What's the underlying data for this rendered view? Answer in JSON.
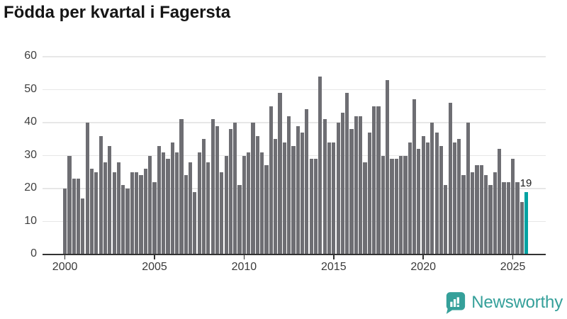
{
  "title": "Födda per kvartal i Fagersta",
  "chart_data": {
    "type": "bar",
    "title": "Födda per kvartal i Fagersta",
    "x_start": "2000-Q1",
    "x_end": "2025-Q4",
    "frequency": "quarterly",
    "values": [
      20,
      30,
      23,
      23,
      17,
      40,
      26,
      25,
      36,
      28,
      33,
      25,
      28,
      21,
      20,
      25,
      25,
      24,
      26,
      30,
      22,
      33,
      31,
      29,
      34,
      31,
      41,
      24,
      28,
      19,
      31,
      35,
      28,
      41,
      39,
      25,
      30,
      38,
      40,
      21,
      30,
      31,
      40,
      36,
      31,
      27,
      45,
      35,
      49,
      34,
      42,
      33,
      39,
      37,
      44,
      29,
      29,
      54,
      41,
      34,
      34,
      40,
      43,
      49,
      38,
      42,
      42,
      28,
      37,
      45,
      45,
      30,
      53,
      29,
      29,
      30,
      30,
      34,
      47,
      32,
      36,
      34,
      40,
      37,
      33,
      21,
      46,
      34,
      35,
      24,
      40,
      25,
      27,
      27,
      24,
      21,
      25,
      32,
      22,
      22,
      29,
      22,
      16,
      19
    ],
    "highlight_index": 103,
    "highlight_label": "19",
    "xticks": [
      {
        "index": 0,
        "label": "2000"
      },
      {
        "index": 20,
        "label": "2005"
      },
      {
        "index": 40,
        "label": "2010"
      },
      {
        "index": 60,
        "label": "2015"
      },
      {
        "index": 80,
        "label": "2020"
      },
      {
        "index": 100,
        "label": "2025"
      }
    ],
    "yticks": [
      0,
      10,
      20,
      30,
      40,
      50,
      60
    ],
    "ylim": [
      0,
      60
    ],
    "grid": "horizontal",
    "legend": "none",
    "colors": {
      "bar": "#6e6e73",
      "highlight": "#00a2a2",
      "grid": "#e7e7e7",
      "axis": "#333333",
      "tick_label": "#3f3f3f"
    }
  },
  "footer": {
    "brand": "Newsworthy",
    "brand_color": "#35a09a"
  }
}
